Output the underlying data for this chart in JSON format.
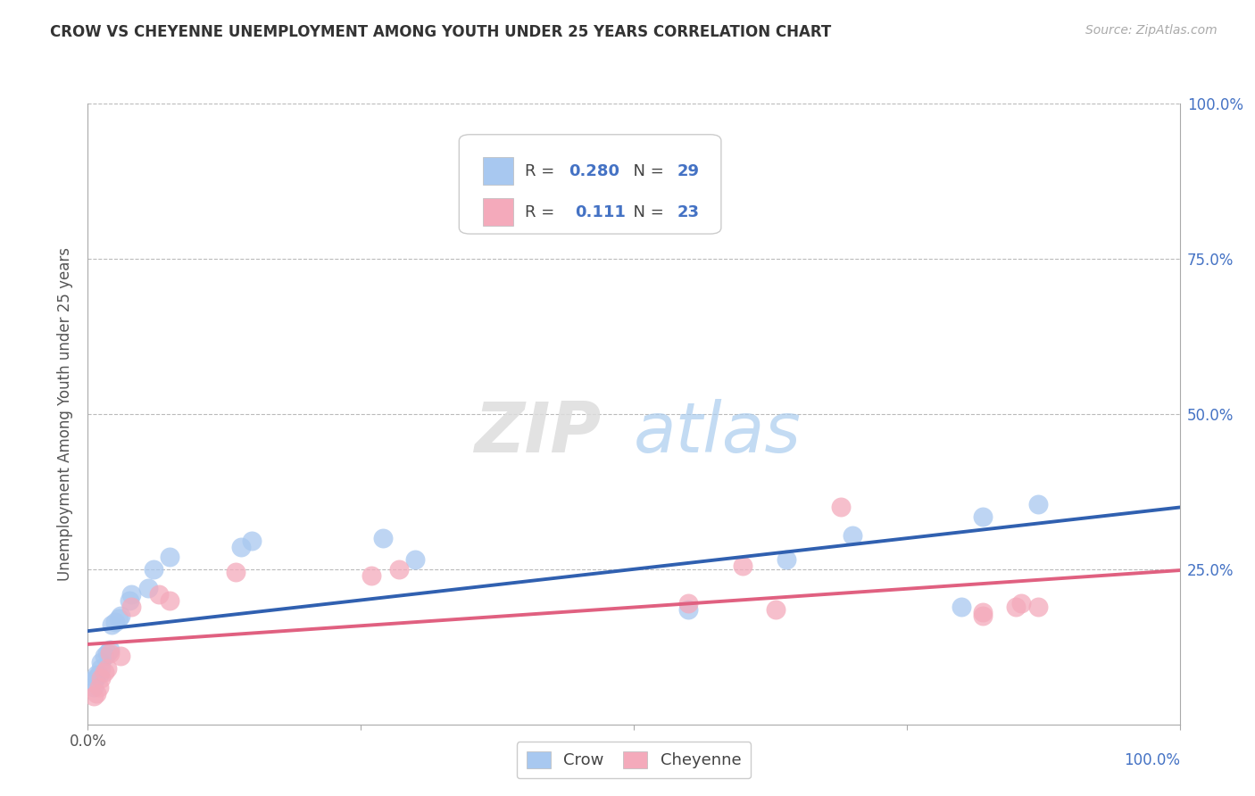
{
  "title": "CROW VS CHEYENNE UNEMPLOYMENT AMONG YOUTH UNDER 25 YEARS CORRELATION CHART",
  "source": "Source: ZipAtlas.com",
  "ylabel": "Unemployment Among Youth under 25 years",
  "watermark_zip": "ZIP",
  "watermark_atlas": "atlas",
  "crow_R": "0.280",
  "crow_N": "29",
  "cheyenne_R": "0.111",
  "cheyenne_N": "23",
  "crow_color": "#A8C8F0",
  "cheyenne_color": "#F4AABB",
  "crow_line_color": "#3060B0",
  "cheyenne_line_color": "#E06080",
  "axis_color": "#4472C4",
  "background_color": "#FFFFFF",
  "grid_color": "#BBBBBB",
  "xlim": [
    0,
    1
  ],
  "ylim": [
    0,
    1
  ],
  "crow_x": [
    0.005,
    0.005,
    0.007,
    0.008,
    0.01,
    0.012,
    0.012,
    0.015,
    0.018,
    0.02,
    0.022,
    0.025,
    0.028,
    0.03,
    0.038,
    0.04,
    0.055,
    0.06,
    0.075,
    0.14,
    0.15,
    0.27,
    0.3,
    0.55,
    0.64,
    0.7,
    0.8,
    0.82,
    0.87
  ],
  "crow_y": [
    0.06,
    0.07,
    0.075,
    0.08,
    0.08,
    0.09,
    0.1,
    0.11,
    0.115,
    0.12,
    0.16,
    0.165,
    0.17,
    0.175,
    0.2,
    0.21,
    0.22,
    0.25,
    0.27,
    0.285,
    0.295,
    0.3,
    0.265,
    0.185,
    0.265,
    0.305,
    0.19,
    0.335,
    0.355
  ],
  "cheyenne_x": [
    0.005,
    0.008,
    0.01,
    0.012,
    0.015,
    0.018,
    0.02,
    0.03,
    0.04,
    0.065,
    0.075,
    0.135,
    0.26,
    0.285,
    0.55,
    0.6,
    0.63,
    0.69,
    0.82,
    0.82,
    0.85,
    0.855,
    0.87
  ],
  "cheyenne_y": [
    0.045,
    0.05,
    0.06,
    0.075,
    0.085,
    0.09,
    0.115,
    0.11,
    0.19,
    0.21,
    0.2,
    0.245,
    0.24,
    0.25,
    0.195,
    0.255,
    0.185,
    0.35,
    0.175,
    0.18,
    0.19,
    0.195,
    0.19
  ]
}
